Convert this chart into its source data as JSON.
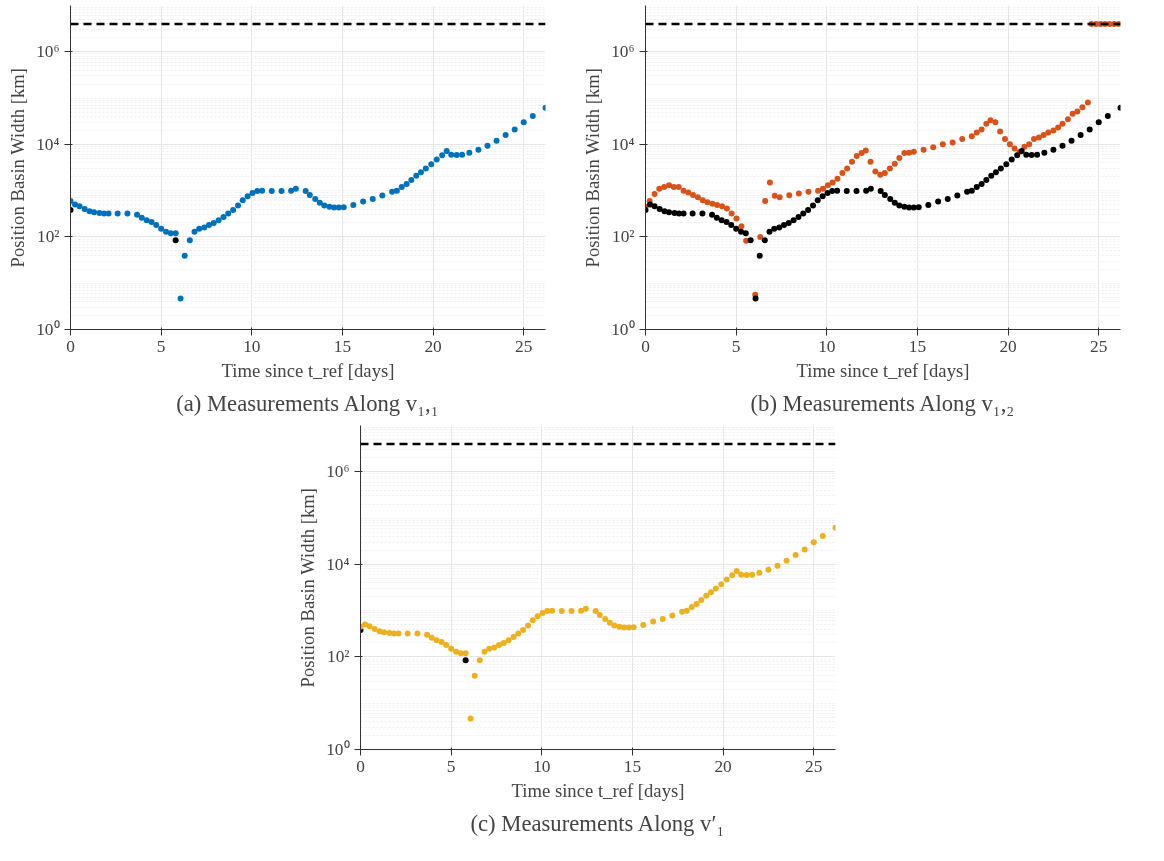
{
  "chart_data": [
    {
      "type": "scatter",
      "title": "(a) Measurements Along v₁,₁",
      "xlabel": "Time since t_ref [days]",
      "ylabel": "Position Basin Width [km]",
      "log": "y",
      "grid": true,
      "marker": "circle",
      "xlim": [
        0,
        26.2
      ],
      "xticks": [
        0,
        5,
        10,
        15,
        20,
        25
      ],
      "ylim": [
        1,
        10000000
      ],
      "yticks": [
        {
          "value": 1,
          "label": "10⁰"
        },
        {
          "value": 100,
          "label": "10²"
        },
        {
          "value": 10000,
          "label": "10⁴"
        },
        {
          "value": 1000000,
          "label": "10⁶"
        }
      ],
      "ref_lines": [
        {
          "axis": "y",
          "value": 4000000,
          "color": "#000000",
          "line_style": "dashed"
        }
      ],
      "series": [
        {
          "color": "#000000",
          "x": [
            0,
            5.8
          ],
          "values": [
            380,
            85
          ]
        },
        {
          "color": "#0072bd",
          "x": [
            0,
            0.25,
            0.5,
            0.78,
            1.05,
            1.3,
            1.6,
            1.85,
            2.1,
            2.6,
            3.14,
            3.67,
            3.93,
            4.2,
            4.47,
            4.73,
            5.0,
            5.27,
            5.53,
            5.8,
            6.07,
            6.3,
            6.58,
            6.84,
            7.1,
            7.38,
            7.64,
            7.9,
            8.17,
            8.44,
            8.7,
            8.97,
            9.24,
            9.5,
            9.77,
            10.04,
            10.3,
            10.57,
            11.1,
            11.64,
            12.17,
            12.43,
            12.97,
            13.2,
            13.5,
            13.75,
            14.0,
            14.28,
            14.54,
            14.8,
            15.07,
            15.6,
            16.14,
            16.67,
            17.2,
            17.74,
            18.0,
            18.27,
            18.54,
            18.8,
            19.07,
            19.33,
            19.6,
            19.9,
            20.2,
            20.5,
            20.75,
            21.0,
            21.3,
            21.6,
            22.0,
            22.5,
            23.0,
            23.5,
            24.0,
            24.5,
            25.0,
            25.5,
            26.2
          ],
          "values": [
            600,
            500,
            460,
            400,
            360,
            340,
            330,
            320,
            320,
            320,
            320,
            300,
            260,
            230,
            210,
            180,
            150,
            130,
            120,
            120,
            4.7,
            39,
            85,
            130,
            150,
            160,
            180,
            200,
            230,
            270,
            320,
            380,
            480,
            620,
            760,
            890,
            980,
            1000,
            980,
            980,
            1000,
            1100,
            980,
            810,
            660,
            550,
            480,
            450,
            430,
            430,
            440,
            490,
            580,
            660,
            790,
            950,
            1000,
            1200,
            1400,
            1700,
            2100,
            2500,
            3000,
            3700,
            4700,
            5800,
            7200,
            6000,
            5900,
            6000,
            6600,
            7600,
            9300,
            12000,
            16000,
            21000,
            30000,
            41000,
            62000
          ]
        }
      ]
    },
    {
      "type": "scatter",
      "title": "(b) Measurements Along v₁,₂",
      "xlabel": "Time since t_ref [days]",
      "ylabel": "Position Basin Width [km]",
      "log": "y",
      "grid": true,
      "marker": "circle",
      "xlim": [
        0,
        26.2
      ],
      "xticks": [
        0,
        5,
        10,
        15,
        20,
        25
      ],
      "ylim": [
        1,
        10000000
      ],
      "yticks": [
        {
          "value": 1,
          "label": "10⁰"
        },
        {
          "value": 100,
          "label": "10²"
        },
        {
          "value": 10000,
          "label": "10⁴"
        },
        {
          "value": 1000000,
          "label": "10⁶"
        }
      ],
      "ref_lines": [
        {
          "axis": "y",
          "value": 4000000,
          "color": "#000000",
          "line_style": "dashed"
        }
      ],
      "series": [
        {
          "color": "#d95319",
          "x": [
            0,
            0.23,
            0.5,
            0.76,
            1.03,
            1.3,
            1.56,
            1.83,
            2.1,
            2.36,
            2.62,
            2.89,
            3.16,
            3.42,
            3.69,
            3.95,
            4.22,
            4.49,
            4.75,
            5.02,
            5.29,
            5.55,
            6.05,
            6.33,
            6.6,
            6.86,
            7.13,
            7.4,
            7.93,
            8.46,
            8.99,
            9.52,
            9.79,
            10.06,
            10.32,
            10.59,
            10.86,
            11.12,
            11.39,
            11.65,
            11.92,
            12.15,
            12.41,
            12.68,
            12.95,
            13.2,
            13.48,
            13.75,
            14.0,
            14.28,
            14.54,
            14.8,
            15.34,
            15.87,
            16.4,
            16.94,
            17.47,
            18.0,
            18.27,
            18.54,
            18.8,
            19.03,
            19.3,
            19.56,
            19.83,
            20.1,
            20.36,
            20.63,
            20.9,
            21.16,
            21.43,
            21.7,
            21.96,
            22.22,
            22.5,
            22.76,
            23.0,
            23.3,
            23.56,
            23.82,
            24.1,
            24.4,
            24.6,
            24.85,
            25.1,
            25.35,
            25.6,
            25.85,
            26.1
          ],
          "values": [
            450,
            600,
            850,
            1100,
            1200,
            1300,
            1200,
            1200,
            1000,
            910,
            810,
            720,
            620,
            560,
            520,
            490,
            460,
            410,
            320,
            250,
            170,
            83,
            5.6,
            100,
            600,
            1500,
            780,
            720,
            800,
            870,
            950,
            1000,
            1100,
            1300,
            1500,
            1800,
            2400,
            3000,
            4200,
            5600,
            6500,
            7400,
            4200,
            2600,
            2200,
            2400,
            3000,
            3800,
            5100,
            6500,
            6600,
            6900,
            7600,
            8700,
            10000,
            11000,
            13000,
            15000,
            18000,
            21000,
            28000,
            33000,
            30000,
            19000,
            13000,
            10000,
            8100,
            6800,
            8900,
            10000,
            13000,
            14000,
            16000,
            18000,
            20000,
            23000,
            28000,
            35000,
            46000,
            51000,
            63000,
            80000,
            4000000,
            4000000,
            4000000,
            4000000,
            4000000,
            4000000,
            4000000
          ]
        },
        {
          "color": "#000000",
          "x": [
            0,
            0.25,
            0.5,
            0.78,
            1.05,
            1.3,
            1.6,
            1.85,
            2.1,
            2.6,
            3.14,
            3.67,
            3.93,
            4.2,
            4.47,
            4.73,
            5.0,
            5.27,
            5.53,
            5.8,
            6.07,
            6.3,
            6.58,
            6.84,
            7.1,
            7.38,
            7.64,
            7.9,
            8.17,
            8.44,
            8.7,
            8.97,
            9.24,
            9.5,
            9.77,
            10.04,
            10.3,
            10.57,
            11.1,
            11.64,
            12.17,
            12.43,
            12.97,
            13.2,
            13.5,
            13.75,
            14.0,
            14.28,
            14.54,
            14.8,
            15.07,
            15.6,
            16.14,
            16.67,
            17.2,
            17.74,
            18.0,
            18.27,
            18.54,
            18.8,
            19.07,
            19.33,
            19.6,
            19.9,
            20.2,
            20.5,
            20.75,
            21.0,
            21.3,
            21.6,
            22.0,
            22.5,
            23.0,
            23.5,
            24.0,
            24.5,
            25.0,
            25.5,
            26.2
          ],
          "values": [
            380,
            500,
            460,
            400,
            360,
            340,
            330,
            320,
            320,
            320,
            320,
            300,
            260,
            230,
            210,
            180,
            150,
            130,
            120,
            85,
            4.7,
            39,
            85,
            130,
            150,
            160,
            180,
            200,
            230,
            270,
            320,
            380,
            480,
            620,
            760,
            890,
            980,
            1000,
            980,
            980,
            1000,
            1100,
            980,
            810,
            660,
            550,
            480,
            450,
            430,
            430,
            440,
            490,
            580,
            660,
            790,
            950,
            1000,
            1200,
            1400,
            1700,
            2100,
            2500,
            3000,
            3700,
            4700,
            5800,
            7200,
            6000,
            5900,
            6000,
            6600,
            7600,
            9300,
            12000,
            16000,
            21000,
            30000,
            41000,
            62000
          ]
        }
      ]
    },
    {
      "type": "scatter",
      "title": "(c) Measurements Along v′₁",
      "xlabel": "Time since t_ref [days]",
      "ylabel": "Position Basin Width [km]",
      "log": "y",
      "grid": true,
      "marker": "circle",
      "xlim": [
        0,
        26.2
      ],
      "xticks": [
        0,
        5,
        10,
        15,
        20,
        25
      ],
      "ylim": [
        1,
        10000000
      ],
      "yticks": [
        {
          "value": 1,
          "label": "10⁰"
        },
        {
          "value": 100,
          "label": "10²"
        },
        {
          "value": 10000,
          "label": "10⁴"
        },
        {
          "value": 1000000,
          "label": "10⁶"
        }
      ],
      "ref_lines": [
        {
          "axis": "y",
          "value": 4000000,
          "color": "#000000",
          "line_style": "dashed"
        }
      ],
      "series": [
        {
          "color": "#000000",
          "x": [
            0,
            5.8
          ],
          "values": [
            380,
            85
          ]
        },
        {
          "color": "#edb120",
          "x": [
            0,
            0.25,
            0.5,
            0.78,
            1.05,
            1.3,
            1.6,
            1.85,
            2.1,
            2.6,
            3.14,
            3.67,
            3.93,
            4.2,
            4.47,
            4.73,
            5.0,
            5.27,
            5.53,
            5.8,
            6.07,
            6.3,
            6.58,
            6.84,
            7.1,
            7.38,
            7.64,
            7.9,
            8.17,
            8.44,
            8.7,
            8.97,
            9.24,
            9.5,
            9.77,
            10.04,
            10.3,
            10.57,
            11.1,
            11.64,
            12.17,
            12.43,
            12.97,
            13.2,
            13.5,
            13.75,
            14.0,
            14.28,
            14.54,
            14.8,
            15.07,
            15.6,
            16.14,
            16.67,
            17.2,
            17.74,
            18.0,
            18.27,
            18.54,
            18.8,
            19.07,
            19.33,
            19.6,
            19.9,
            20.2,
            20.5,
            20.75,
            21.0,
            21.3,
            21.6,
            22.0,
            22.5,
            23.0,
            23.5,
            24.0,
            24.5,
            25.0,
            25.5,
            26.2
          ],
          "values": [
            450,
            500,
            460,
            400,
            360,
            340,
            330,
            320,
            320,
            320,
            320,
            300,
            260,
            230,
            210,
            180,
            150,
            130,
            120,
            120,
            4.7,
            39,
            85,
            130,
            150,
            160,
            180,
            200,
            230,
            270,
            320,
            380,
            480,
            620,
            760,
            890,
            980,
            1000,
            980,
            980,
            1000,
            1100,
            980,
            810,
            660,
            550,
            480,
            450,
            430,
            430,
            440,
            490,
            580,
            660,
            790,
            950,
            1000,
            1200,
            1400,
            1700,
            2100,
            2500,
            3000,
            3700,
            4700,
            5800,
            7200,
            6000,
            5900,
            6000,
            6600,
            7600,
            9300,
            12000,
            16000,
            21000,
            30000,
            41000,
            62000
          ]
        }
      ]
    }
  ]
}
